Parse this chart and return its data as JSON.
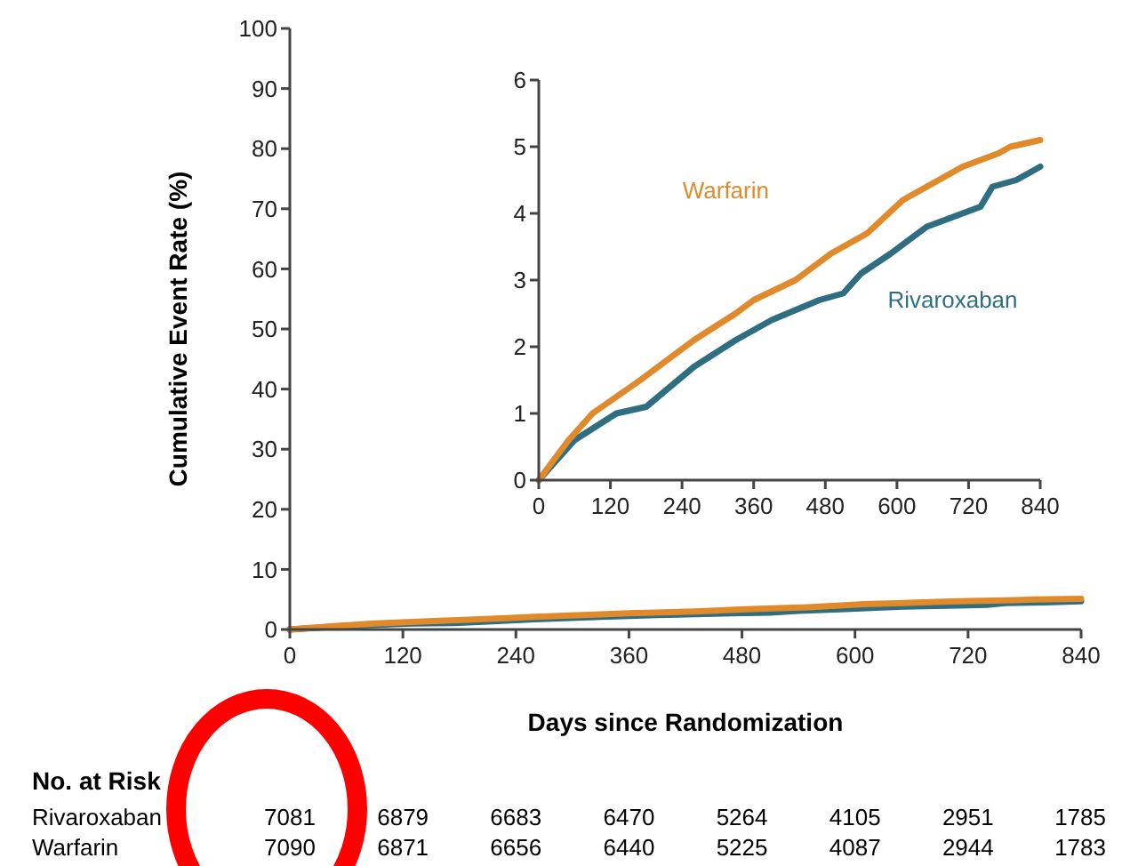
{
  "chart_data": [
    {
      "type": "line",
      "ylabel": "Cumulative Event Rate (%)",
      "xlabel": "Days since Randomization",
      "xlim": [
        0,
        840
      ],
      "xticks": [
        0,
        120,
        240,
        360,
        480,
        600,
        720,
        840
      ],
      "ylim": [
        0,
        100
      ],
      "yticks": [
        0,
        10,
        20,
        30,
        40,
        50,
        60,
        70,
        80,
        90,
        100
      ],
      "grid": false,
      "line_style": "solid",
      "series": [
        {
          "color": "#2e6e80",
          "x": [
            0,
            60,
            130,
            180,
            260,
            330,
            390,
            470,
            510,
            540,
            590,
            650,
            710,
            740,
            760,
            800,
            840
          ],
          "values": [
            0,
            0.6,
            1,
            1.1,
            1.7,
            2.1,
            2.4,
            2.7,
            2.8,
            3.1,
            3.4,
            3.8,
            4,
            4.1,
            4.4,
            4.5,
            4.7
          ]
        },
        {
          "color": "#e08a2c",
          "x": [
            0,
            50,
            90,
            170,
            230,
            260,
            330,
            360,
            430,
            490,
            550,
            610,
            670,
            710,
            770,
            790,
            840
          ],
          "values": [
            0,
            0.6,
            1,
            1.5,
            1.9,
            2.1,
            2.5,
            2.7,
            3,
            3.4,
            3.7,
            4.2,
            4.5,
            4.7,
            4.9,
            5,
            5.1
          ]
        }
      ],
      "annotations": [
        "No. at Risk",
        "Rivaroxaban",
        "7081",
        "6879",
        "6683",
        "6470",
        "5264",
        "4105",
        "2951",
        "1785",
        "Warfarin",
        "7090",
        "6871",
        "6656",
        "6440",
        "5225",
        "4087",
        "2944",
        "1783"
      ]
    },
    {
      "type": "line",
      "xlim": [
        0,
        840
      ],
      "xticks": [
        0,
        120,
        240,
        360,
        480,
        600,
        720,
        840
      ],
      "ylim": [
        0,
        6
      ],
      "yticks": [
        0,
        1,
        2,
        3,
        4,
        5,
        6
      ],
      "grid": false,
      "line_style": "solid",
      "series": [
        {
          "name": "Rivaroxaban",
          "color": "#2e6e80",
          "x": [
            0,
            60,
            130,
            180,
            260,
            330,
            390,
            470,
            510,
            540,
            590,
            650,
            710,
            740,
            760,
            800,
            840
          ],
          "values": [
            0,
            0.6,
            1,
            1.1,
            1.7,
            2.1,
            2.4,
            2.7,
            2.8,
            3.1,
            3.4,
            3.8,
            4,
            4.1,
            4.4,
            4.5,
            4.7
          ]
        },
        {
          "name": "Warfarin",
          "color": "#e08a2c",
          "x": [
            0,
            50,
            90,
            170,
            230,
            260,
            330,
            360,
            430,
            490,
            550,
            610,
            670,
            710,
            770,
            790,
            840
          ],
          "values": [
            0,
            0.6,
            1,
            1.5,
            1.9,
            2.1,
            2.5,
            2.7,
            3,
            3.4,
            3.7,
            4.2,
            4.5,
            4.7,
            4.9,
            5,
            5.1
          ]
        }
      ]
    }
  ]
}
